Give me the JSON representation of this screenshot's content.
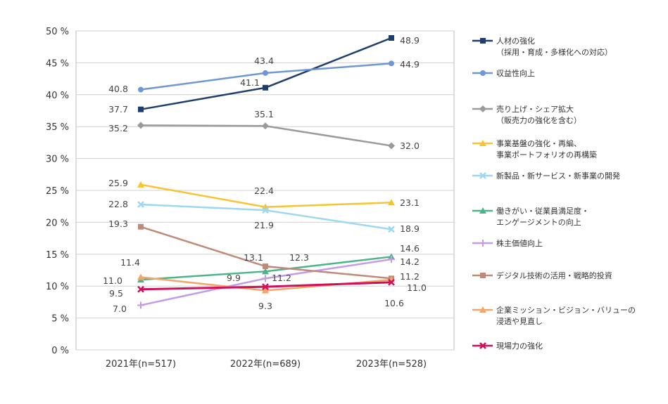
{
  "chart_data": {
    "type": "line",
    "categories": [
      "2021年(n=517)",
      "2022年(n=689)",
      "2023年(n=528)"
    ],
    "ylim": [
      0,
      50
    ],
    "yticks": [
      "0 %",
      "5 %",
      "10 %",
      "15 %",
      "20 %",
      "25 %",
      "30 %",
      "35 %",
      "40 %",
      "45 %",
      "50 %"
    ],
    "grid": true,
    "legend_position": "right",
    "series": [
      {
        "name": "人材の強化\n（採用・育成・多様化への対応）",
        "color": "#1f3e6e",
        "marker": "square",
        "values": [
          37.7,
          41.1,
          48.9
        ],
        "labels": [
          "37.7",
          "41.1",
          "48.9"
        ]
      },
      {
        "name": "収益性向上",
        "color": "#6f97d3",
        "marker": "circle",
        "values": [
          40.8,
          43.4,
          44.9
        ],
        "labels": [
          "40.8",
          "43.4",
          "44.9"
        ]
      },
      {
        "name": "売り上げ・シェア拡大\n（販売力の強化を含む）",
        "color": "#9a9a9a",
        "marker": "diamond",
        "values": [
          35.2,
          35.1,
          32.0
        ],
        "labels": [
          "35.2",
          "35.1",
          "32.0"
        ]
      },
      {
        "name": "事業基盤の強化・再編、\n事業ポートフォリオの再構築",
        "color": "#f7c531",
        "marker": "triangle",
        "values": [
          25.9,
          22.4,
          23.1
        ],
        "labels": [
          "25.9",
          "22.4",
          "23.1"
        ]
      },
      {
        "name": "新製品・新サービス・新事業の開発",
        "color": "#9ed8f0",
        "marker": "x",
        "values": [
          22.8,
          21.9,
          18.9
        ],
        "labels": [
          "22.8",
          "21.9",
          "18.9"
        ]
      },
      {
        "name": "働きがい・従業員満足度・\nエンゲージメントの向上",
        "color": "#4bb58a",
        "marker": "triangle",
        "values": [
          11.0,
          12.3,
          14.6
        ],
        "labels": [
          "11.0",
          "12.3",
          "14.6"
        ]
      },
      {
        "name": "株主価値向上",
        "color": "#c39be8",
        "marker": "plus",
        "values": [
          7.0,
          11.2,
          14.2
        ],
        "labels": [
          "7.0",
          "11.2",
          "14.2"
        ]
      },
      {
        "name": "デジタル技術の活用・戦略的投資",
        "color": "#c08a78",
        "marker": "square",
        "values": [
          19.3,
          13.1,
          11.2
        ],
        "labels": [
          "19.3",
          "13.1",
          "11.2"
        ]
      },
      {
        "name": "企業ミッション・ビジョン・バリューの\n浸透や見直し",
        "color": "#f4a56a",
        "marker": "triangle",
        "values": [
          11.4,
          9.3,
          11.0
        ],
        "labels": [
          "11.4",
          "9.3",
          "11.0"
        ]
      },
      {
        "name": "現場力の強化",
        "color": "#d0105a",
        "marker": "x",
        "values": [
          9.5,
          9.9,
          10.6
        ],
        "labels": [
          "9.5",
          "9.9",
          "10.6"
        ]
      }
    ]
  }
}
